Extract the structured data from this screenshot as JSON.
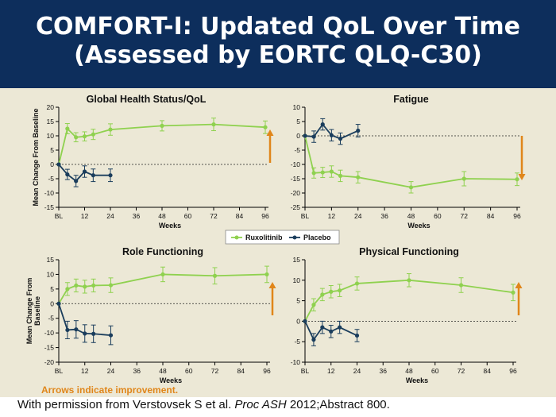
{
  "slide": {
    "title_line1": "COMFORT-I: Updated QoL Over Time",
    "title_line2": "(Assessed by EORTC QLQ-C30)",
    "arrows_note": "Arrows indicate improvement.",
    "citation_pre": "With permission from Verstovsek S et al. ",
    "citation_journal": "Proc ASH",
    "citation_post": " 2012;Abstract 800."
  },
  "colors": {
    "title_bg": "#0d2e5c",
    "panel_bg": "#ece8d6",
    "ruxolitinib": "#8fd14f",
    "placebo": "#1a3d5c",
    "arrow": "#e0861a"
  },
  "legend": {
    "series": [
      "Ruxolitinib",
      "Placebo"
    ]
  },
  "chart_data": [
    {
      "type": "line",
      "title": "Global Health Status/QoL",
      "ylabel": "Mean Change From Baseline",
      "xlabel": "Weeks",
      "x_ticks": [
        "BL",
        "12",
        "24",
        "36",
        "48",
        "60",
        "72",
        "84",
        "96"
      ],
      "x_range": [
        0,
        96
      ],
      "ylim": [
        -15,
        20
      ],
      "y_ticks": [
        20,
        15,
        10,
        5,
        0,
        -5,
        -10,
        -15
      ],
      "improvement_arrow": "up",
      "series": [
        {
          "name": "Ruxolitinib",
          "x": [
            0,
            4,
            8,
            12,
            16,
            24,
            48,
            72,
            96
          ],
          "y": [
            0,
            12.5,
            9.5,
            9.8,
            10.5,
            12.2,
            13.5,
            14.0,
            13.0
          ],
          "err": [
            0,
            1.8,
            1.6,
            1.6,
            1.8,
            2.0,
            1.8,
            2.2,
            2.2
          ]
        },
        {
          "name": "Placebo",
          "x": [
            0,
            4,
            8,
            12,
            16,
            24
          ],
          "y": [
            0,
            -3.5,
            -5.8,
            -2.5,
            -3.8,
            -3.8
          ],
          "err": [
            0,
            1.8,
            2.0,
            2.0,
            2.2,
            2.2
          ]
        }
      ]
    },
    {
      "type": "line",
      "title": "Fatigue",
      "ylabel": "",
      "xlabel": "Weeks",
      "x_ticks": [
        "BL",
        "12",
        "24",
        "36",
        "48",
        "60",
        "72",
        "84",
        "96"
      ],
      "x_range": [
        0,
        96
      ],
      "ylim": [
        -25,
        10
      ],
      "y_ticks": [
        10,
        5,
        0,
        -5,
        -10,
        -15,
        -20,
        -25
      ],
      "improvement_arrow": "down",
      "series": [
        {
          "name": "Ruxolitinib",
          "x": [
            0,
            4,
            8,
            12,
            16,
            24,
            48,
            72,
            96
          ],
          "y": [
            0,
            -13.0,
            -12.8,
            -12.5,
            -14.0,
            -14.5,
            -18.0,
            -15.0,
            -15.2
          ],
          "err": [
            0,
            1.8,
            1.8,
            2.0,
            2.0,
            2.0,
            2.0,
            2.5,
            2.2
          ]
        },
        {
          "name": "Placebo",
          "x": [
            0,
            4,
            8,
            12,
            16,
            24
          ],
          "y": [
            0,
            -0.3,
            4.0,
            0.2,
            -1.0,
            1.8
          ],
          "err": [
            0,
            2.0,
            2.0,
            2.0,
            2.0,
            2.2
          ]
        }
      ]
    },
    {
      "type": "line",
      "title": "Role Functioning",
      "ylabel": "Mean Change From Baseline",
      "xlabel": "Weeks",
      "x_ticks": [
        "BL",
        "12",
        "24",
        "36",
        "48",
        "60",
        "72",
        "84",
        "96"
      ],
      "x_range": [
        0,
        96
      ],
      "ylim": [
        -20,
        15
      ],
      "y_ticks": [
        15,
        10,
        5,
        0,
        -5,
        -10,
        -15,
        -20
      ],
      "improvement_arrow": "up",
      "series": [
        {
          "name": "Ruxolitinib",
          "x": [
            0,
            4,
            8,
            12,
            16,
            24,
            48,
            72,
            96
          ],
          "y": [
            0,
            5.0,
            6.2,
            5.8,
            6.2,
            6.3,
            10.0,
            9.5,
            10.0
          ],
          "err": [
            0,
            2.2,
            2.2,
            2.2,
            2.2,
            2.5,
            2.5,
            2.8,
            2.8
          ]
        },
        {
          "name": "Placebo",
          "x": [
            0,
            4,
            8,
            12,
            16,
            24
          ],
          "y": [
            0,
            -9.0,
            -8.8,
            -10.2,
            -10.3,
            -10.8
          ],
          "err": [
            0,
            3.0,
            3.0,
            3.0,
            3.0,
            3.2
          ]
        }
      ]
    },
    {
      "type": "line",
      "title": "Physical Functioning",
      "ylabel": "",
      "xlabel": "Weeks",
      "x_ticks": [
        "BL",
        "12",
        "24",
        "36",
        "48",
        "60",
        "72",
        "84",
        "96"
      ],
      "x_range": [
        0,
        96
      ],
      "ylim": [
        -10,
        15
      ],
      "y_ticks": [
        15,
        10,
        5,
        0,
        -5,
        -10
      ],
      "improvement_arrow": "up",
      "series": [
        {
          "name": "Ruxolitinib",
          "x": [
            0,
            4,
            8,
            12,
            16,
            24,
            48,
            72,
            96
          ],
          "y": [
            0,
            4.0,
            6.5,
            7.2,
            7.5,
            9.2,
            10.0,
            8.8,
            7.0
          ],
          "err": [
            0,
            1.5,
            1.5,
            1.5,
            1.5,
            1.6,
            1.6,
            1.8,
            2.0
          ]
        },
        {
          "name": "Placebo",
          "x": [
            0,
            4,
            8,
            12,
            16,
            24
          ],
          "y": [
            0,
            -4.5,
            -1.5,
            -2.5,
            -1.5,
            -3.5
          ],
          "err": [
            0,
            1.5,
            1.5,
            1.5,
            1.5,
            1.5
          ]
        }
      ]
    }
  ]
}
